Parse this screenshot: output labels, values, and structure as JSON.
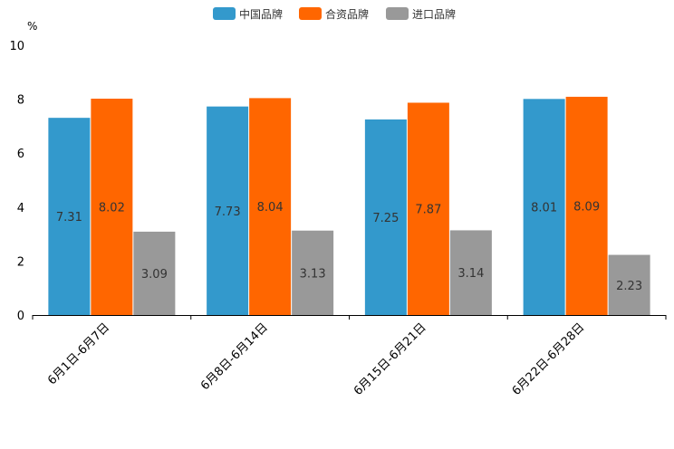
{
  "chart_data": {
    "type": "bar",
    "title": "",
    "xlabel": "",
    "ylabel": "%",
    "ylim": [
      0,
      10
    ],
    "yticks": [
      0,
      2,
      4,
      6,
      8,
      10
    ],
    "grid": false,
    "legend_position": "top-center",
    "categories": [
      "6月1日-6月7日",
      "6月8日-6月14日",
      "6月15日-6月21日",
      "6月22日-6月28日"
    ],
    "series": [
      {
        "name": "中国品牌",
        "color": "#3399cc",
        "values": [
          7.31,
          7.73,
          7.25,
          8.01
        ]
      },
      {
        "name": "合资品牌",
        "color": "#ff6600",
        "values": [
          8.02,
          8.04,
          7.87,
          8.09
        ]
      },
      {
        "name": "进口品牌",
        "color": "#999999",
        "values": [
          3.09,
          3.13,
          3.14,
          2.23
        ]
      }
    ]
  }
}
